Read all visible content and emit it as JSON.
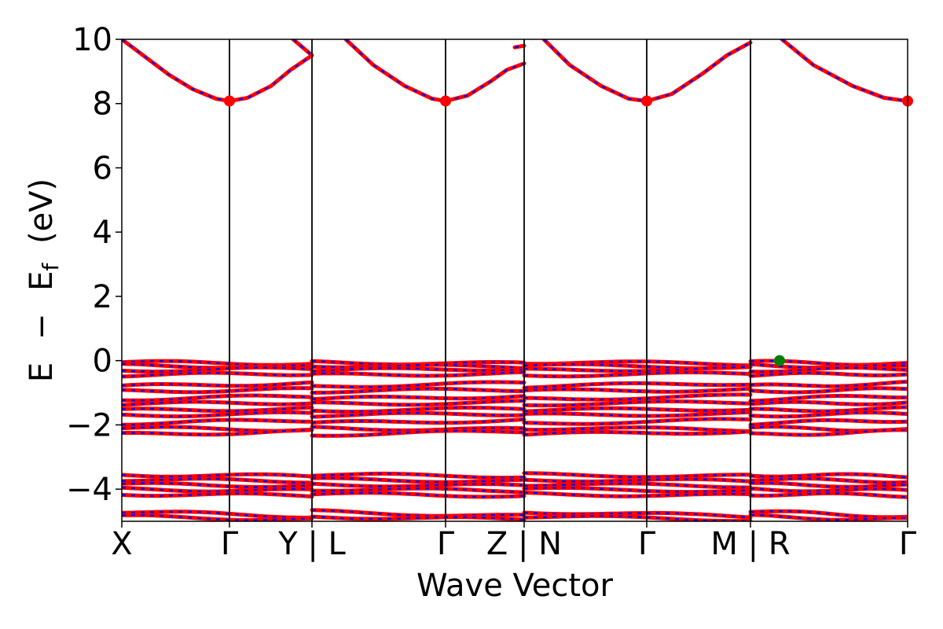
{
  "chart_data": {
    "type": "line",
    "xlabel": "Wave Vector",
    "ylabel_parts": {
      "E": "E",
      "minus": "−",
      "sub_main": "E",
      "sub": "f",
      "unit": "(eV)"
    },
    "ylim": [
      -5,
      10
    ],
    "yticks": [
      10,
      8,
      6,
      4,
      2,
      0,
      -2,
      -4
    ],
    "ytick_labels": [
      "10",
      "8",
      "6",
      "4",
      "2",
      "0",
      "−2",
      "−4"
    ],
    "xlim": [
      0,
      1
    ],
    "kpoints": [
      {
        "x": 0.0,
        "label": "X"
      },
      {
        "x": 0.137,
        "label": "Γ"
      },
      {
        "x": 0.242,
        "label": "Y | L"
      },
      {
        "x": 0.412,
        "label": "Γ"
      },
      {
        "x": 0.512,
        "label": "Z | N"
      },
      {
        "x": 0.668,
        "label": "Γ"
      },
      {
        "x": 0.8,
        "label": "M | R"
      },
      {
        "x": 1.0,
        "label": "Γ"
      }
    ],
    "segment_breaks": [
      0.242,
      0.512,
      0.8
    ],
    "colors": {
      "band_up": "#ff0000",
      "band_down": "#0000ff",
      "cbm": "#ff0000",
      "vbm": "#008000",
      "vline": "#000000"
    },
    "conduction_band": [
      {
        "x": [
          0.0,
          0.03,
          0.06,
          0.09,
          0.12,
          0.137
        ],
        "y": [
          10.0,
          9.45,
          8.9,
          8.45,
          8.15,
          8.08
        ]
      },
      {
        "x": [
          0.137,
          0.16,
          0.19,
          0.215,
          0.242
        ],
        "y": [
          8.08,
          8.18,
          8.55,
          9.05,
          9.5
        ]
      },
      {
        "x": [
          0.218,
          0.23,
          0.242
        ],
        "y": [
          10.0,
          9.75,
          9.5
        ]
      },
      {
        "x": [
          0.285,
          0.32,
          0.36,
          0.395,
          0.412
        ],
        "y": [
          10.0,
          9.2,
          8.55,
          8.15,
          8.08
        ]
      },
      {
        "x": [
          0.412,
          0.44,
          0.47,
          0.49,
          0.512
        ],
        "y": [
          8.08,
          8.25,
          8.7,
          9.05,
          9.25
        ]
      },
      {
        "x": [
          0.5,
          0.512
        ],
        "y": [
          9.75,
          9.8
        ]
      },
      {
        "x": [
          0.537,
          0.57,
          0.61,
          0.645,
          0.668
        ],
        "y": [
          10.0,
          9.2,
          8.55,
          8.15,
          8.08
        ]
      },
      {
        "x": [
          0.668,
          0.7,
          0.74,
          0.77,
          0.8
        ],
        "y": [
          8.08,
          8.3,
          8.95,
          9.5,
          9.9
        ]
      },
      {
        "x": [
          0.84,
          0.88,
          0.93,
          0.97,
          1.0
        ],
        "y": [
          10.0,
          9.2,
          8.55,
          8.18,
          8.08
        ]
      }
    ],
    "valence_bands": [
      {
        "y0": -0.05,
        "y1": -0.1
      },
      {
        "y0": -0.15,
        "y1": -0.2
      },
      {
        "y0": -0.3,
        "y1": -0.25
      },
      {
        "y0": -0.45,
        "y1": -0.4
      },
      {
        "y0": -0.8,
        "y1": -0.7
      },
      {
        "y0": -0.95,
        "y1": -0.9
      },
      {
        "y0": -1.2,
        "y1": -1.1
      },
      {
        "y0": -1.35,
        "y1": -1.3
      },
      {
        "y0": -1.55,
        "y1": -1.5
      },
      {
        "y0": -1.7,
        "y1": -1.65
      },
      {
        "y0": -1.95,
        "y1": -1.85
      },
      {
        "y0": -2.1,
        "y1": -2.15
      },
      {
        "y0": -2.3,
        "y1": -2.2
      },
      {
        "y0": -3.55,
        "y1": -3.6
      },
      {
        "y0": -3.7,
        "y1": -3.75
      },
      {
        "y0": -3.85,
        "y1": -3.9
      },
      {
        "y0": -4.0,
        "y1": -4.05
      },
      {
        "y0": -4.15,
        "y1": -4.2
      },
      {
        "y0": -4.7,
        "y1": -4.85
      },
      {
        "y0": -4.85,
        "y1": -4.95
      }
    ],
    "cbm_points": [
      {
        "x": 0.137,
        "y": 8.08
      },
      {
        "x": 0.412,
        "y": 8.08
      },
      {
        "x": 0.668,
        "y": 8.08
      },
      {
        "x": 1.0,
        "y": 8.08
      }
    ],
    "vbm_points": [
      {
        "x": 0.837,
        "y": 0.0
      }
    ]
  }
}
